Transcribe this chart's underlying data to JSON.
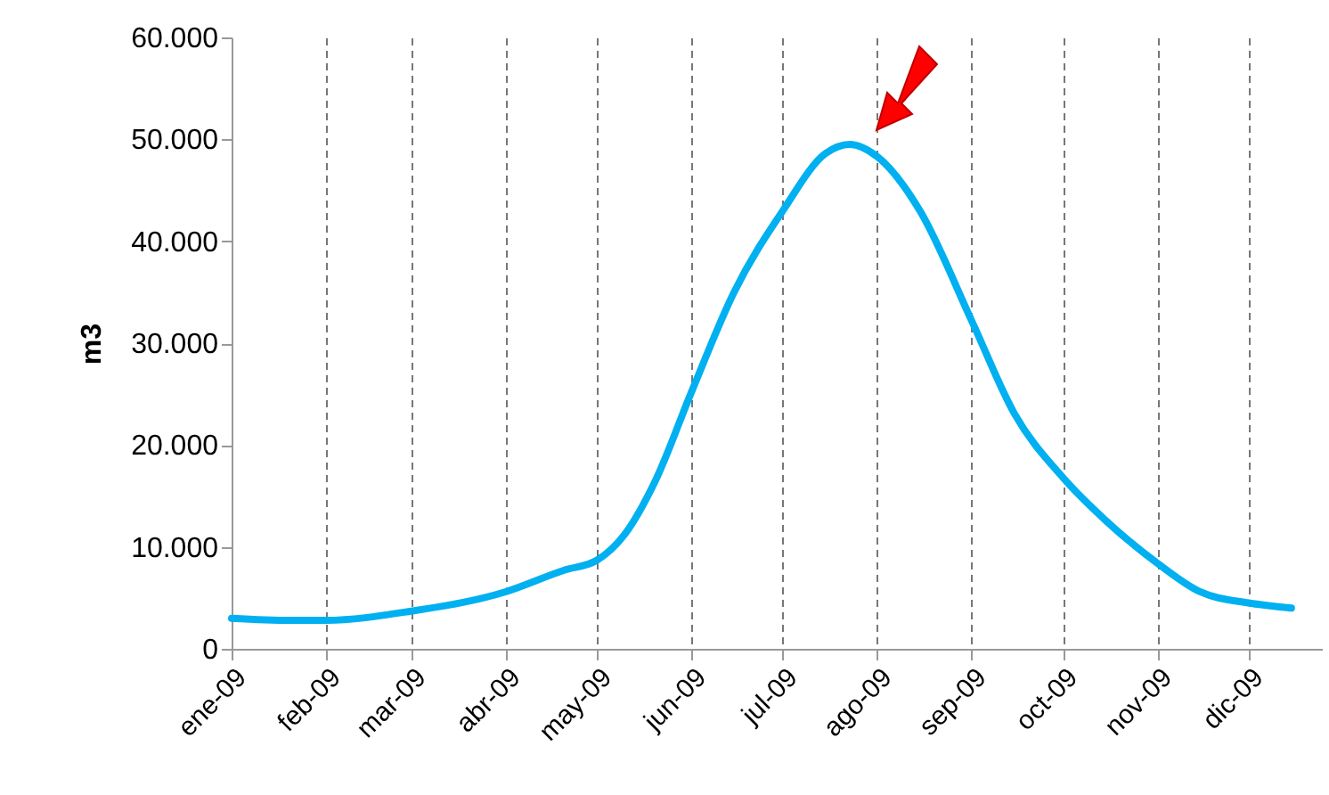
{
  "chart_data": {
    "type": "line",
    "ylabel": "m3",
    "x": [
      "2009-01-01",
      "2009-01-20",
      "2009-02-01",
      "2009-03-01",
      "2009-04-01",
      "2009-04-20",
      "2009-05-01",
      "2009-05-10",
      "2009-05-20",
      "2009-06-01",
      "2009-06-15",
      "2009-07-01",
      "2009-07-15",
      "2009-07-23",
      "2009-08-01",
      "2009-08-15",
      "2009-09-01",
      "2009-09-15",
      "2009-10-01",
      "2009-10-15",
      "2009-11-01",
      "2009-11-15",
      "2009-12-01",
      "2009-12-15"
    ],
    "series": [
      {
        "color": "#00b0f0",
        "values": [
          3000,
          2800,
          2800,
          3700,
          5600,
          7700,
          8700,
          11200,
          16400,
          25200,
          35000,
          43000,
          48600,
          49500,
          48300,
          43000,
          32200,
          23100,
          16800,
          12600,
          8400,
          5600,
          4500,
          4000
        ]
      }
    ],
    "xlim": [
      "2009-01-01",
      "2009-12-25"
    ],
    "xticks": [
      {
        "value": "2009-01-01",
        "label": "ene-09"
      },
      {
        "value": "2009-02-01",
        "label": "feb-09"
      },
      {
        "value": "2009-03-01",
        "label": "mar-09"
      },
      {
        "value": "2009-04-01",
        "label": "abr-09"
      },
      {
        "value": "2009-05-01",
        "label": "may-09"
      },
      {
        "value": "2009-06-01",
        "label": "jun-09"
      },
      {
        "value": "2009-07-01",
        "label": "jul-09"
      },
      {
        "value": "2009-08-01",
        "label": "ago-09"
      },
      {
        "value": "2009-09-01",
        "label": "sep-09"
      },
      {
        "value": "2009-10-01",
        "label": "oct-09"
      },
      {
        "value": "2009-11-01",
        "label": "nov-09"
      },
      {
        "value": "2009-12-01",
        "label": "dic-09"
      }
    ],
    "ylim": [
      0,
      60000
    ],
    "yticks": [
      {
        "value": 0,
        "label": "0"
      },
      {
        "value": 10000,
        "label": "10.000"
      },
      {
        "value": 20000,
        "label": "20.000"
      },
      {
        "value": 30000,
        "label": "30.000"
      },
      {
        "value": 40000,
        "label": "40.000"
      },
      {
        "value": 50000,
        "label": "50.000"
      },
      {
        "value": 60000,
        "label": "60.000"
      }
    ],
    "grid": "x",
    "marker": "none",
    "line_style": "solid"
  }
}
